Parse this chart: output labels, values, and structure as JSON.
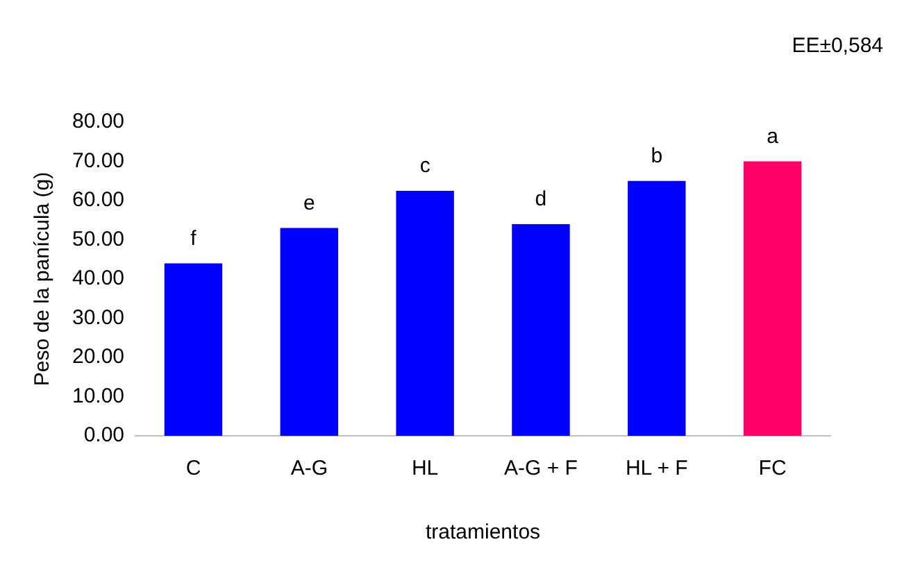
{
  "chart_data": {
    "type": "bar",
    "xlabel": "tratamientos",
    "ylabel": "Peso de la panícula (g)",
    "categories": [
      "C",
      "A-G",
      "HL",
      "A-G + F",
      "HL + F",
      "FC"
    ],
    "values": [
      44,
      53,
      62.5,
      54,
      65,
      70
    ],
    "colors": [
      "#0000ff",
      "#0000ff",
      "#0000ff",
      "#0000ff",
      "#0000ff",
      "#ff0066"
    ],
    "ylim": [
      0,
      80
    ],
    "yticks": [
      {
        "value": 0,
        "label": "0.00"
      },
      {
        "value": 10,
        "label": "10.00"
      },
      {
        "value": 20,
        "label": "20.00"
      },
      {
        "value": 30,
        "label": "30.00"
      },
      {
        "value": 40,
        "label": "40.00"
      },
      {
        "value": 50,
        "label": "50.00"
      },
      {
        "value": 60,
        "label": "60.00"
      },
      {
        "value": 70,
        "label": "70.00"
      },
      {
        "value": 80,
        "label": "80.00"
      }
    ],
    "grid": false,
    "legend": false,
    "annotations": [
      "EE±0,584",
      {
        "text": "f",
        "x": "C",
        "y": 44
      },
      {
        "text": "e",
        "x": "A-G",
        "y": 53
      },
      {
        "text": "c",
        "x": "HL",
        "y": 62.5
      },
      {
        "text": "d",
        "x": "A-G + F",
        "y": 54
      },
      {
        "text": "b",
        "x": "HL + F",
        "y": 65
      },
      {
        "text": "a",
        "x": "FC",
        "y": 70
      }
    ]
  }
}
